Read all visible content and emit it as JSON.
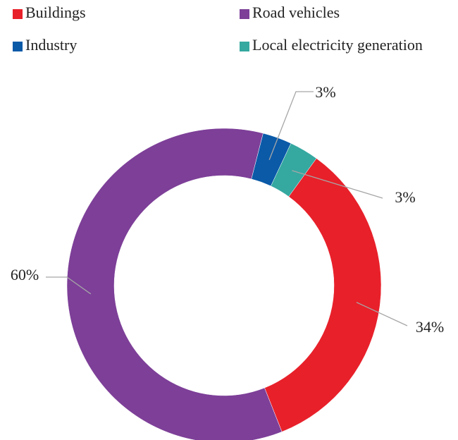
{
  "chart_data": {
    "type": "donut",
    "categories": [
      "Buildings",
      "Road vehicles",
      "Industry",
      "Local electricity generation"
    ],
    "values": [
      34,
      60,
      3,
      3
    ],
    "value_labels": [
      "34%",
      "60%",
      "3%",
      "3%"
    ],
    "colors": [
      "#e8202a",
      "#7d3f98",
      "#0a5aa8",
      "#35a8a0"
    ]
  }
}
